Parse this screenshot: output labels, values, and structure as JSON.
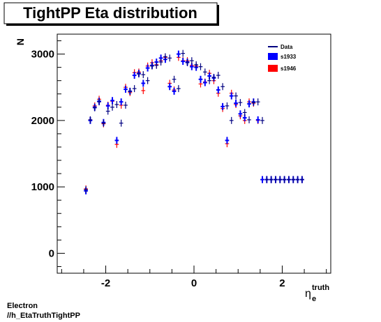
{
  "chart_data": {
    "type": "scatter",
    "title": "TightPP Eta distribution",
    "ylabel": "N",
    "xlabel_main": "η",
    "xlabel_sub": "e",
    "xlabel_sup": "truth",
    "xlim": [
      -3.1,
      3.1
    ],
    "ylim": [
      -300,
      3300
    ],
    "x_ticks": [
      -2,
      0,
      2
    ],
    "x_tick_labels": [
      "-2",
      "0",
      "2"
    ],
    "y_ticks": [
      0,
      1000,
      2000,
      3000
    ],
    "y_tick_labels": [
      "0",
      "1000",
      "2000",
      "3000"
    ],
    "legend": [
      {
        "name": "Data",
        "kind": "line",
        "color": "#000080"
      },
      {
        "name": "s1933",
        "kind": "box",
        "color": "#0000ff"
      },
      {
        "name": "s1946",
        "kind": "box",
        "color": "#ff0000"
      }
    ],
    "x": [
      -2.45,
      -2.35,
      -2.25,
      -2.15,
      -2.05,
      -1.95,
      -1.85,
      -1.75,
      -1.65,
      -1.55,
      -1.45,
      -1.35,
      -1.25,
      -1.15,
      -1.05,
      -0.95,
      -0.85,
      -0.75,
      -0.65,
      -0.55,
      -0.45,
      -0.35,
      -0.25,
      -0.15,
      -0.05,
      0.05,
      0.15,
      0.25,
      0.35,
      0.45,
      0.55,
      0.65,
      0.75,
      0.85,
      0.95,
      1.05,
      1.15,
      1.25,
      1.35,
      1.45,
      1.55,
      1.65,
      1.75,
      1.85,
      1.95,
      2.05,
      2.15,
      2.25,
      2.35,
      2.45
    ],
    "series": [
      {
        "name": "Data",
        "color": "#000080",
        "values": [
          960,
          2010,
          2190,
          2280,
          1960,
          2140,
          2200,
          2240,
          1960,
          2230,
          2440,
          2480,
          2700,
          2690,
          2600,
          2820,
          2830,
          2880,
          2960,
          2940,
          2620,
          2480,
          3010,
          2870,
          2900,
          2840,
          2810,
          2730,
          2600,
          2650,
          2680,
          2510,
          2220,
          2000,
          2370,
          2270,
          2120,
          2010,
          2270,
          2280,
          2000,
          1110,
          1110,
          1110,
          1110,
          1110,
          1110,
          1110,
          1110,
          1110
        ]
      },
      {
        "name": "s1933",
        "color": "#0000ff",
        "values": [
          940,
          2000,
          2200,
          2290,
          1970,
          2220,
          2300,
          1700,
          2280,
          2470,
          2440,
          2680,
          2710,
          2560,
          2790,
          2830,
          2880,
          2940,
          2920,
          2510,
          2440,
          3000,
          2890,
          2880,
          2810,
          2800,
          2620,
          2570,
          2670,
          2640,
          2460,
          2210,
          1700,
          2370,
          2260,
          2100,
          2040,
          2250,
          2280,
          2010,
          1110,
          1110,
          1110,
          1110,
          1110,
          1110,
          1110,
          1110,
          1110,
          1110
        ]
      },
      {
        "name": "s1946",
        "color": "#ff0000",
        "values": [
          970,
          2010,
          2220,
          2320,
          1950,
          2230,
          2290,
          1640,
          2230,
          2500,
          2420,
          2720,
          2730,
          2450,
          2820,
          2870,
          2840,
          2900,
          2950,
          2560,
          2460,
          2950,
          2900,
          2900,
          2830,
          2820,
          2550,
          2580,
          2710,
          2600,
          2410,
          2180,
          1650,
          2410,
          2240,
          2070,
          2000,
          2280,
          2260,
          2000,
          1110,
          1110,
          1110,
          1110,
          1110,
          1110,
          1110,
          1110,
          1110,
          1110
        ]
      }
    ]
  },
  "footer": {
    "line1": "Electron",
    "line2": "//h_EtaTruthTightPP"
  }
}
